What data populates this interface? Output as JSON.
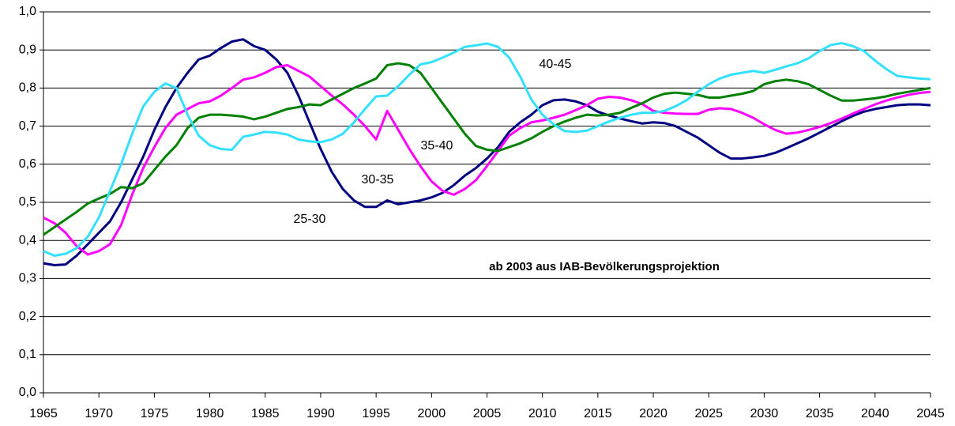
{
  "chart_data": {
    "type": "line",
    "x": [
      1965,
      1966,
      1967,
      1968,
      1969,
      1970,
      1971,
      1972,
      1973,
      1974,
      1975,
      1976,
      1977,
      1978,
      1979,
      1980,
      1981,
      1982,
      1983,
      1984,
      1985,
      1986,
      1987,
      1988,
      1989,
      1990,
      1991,
      1992,
      1993,
      1994,
      1995,
      1996,
      1997,
      1998,
      1999,
      2000,
      2001,
      2002,
      2003,
      2004,
      2005,
      2006,
      2007,
      2008,
      2009,
      2010,
      2011,
      2012,
      2013,
      2014,
      2015,
      2016,
      2017,
      2018,
      2019,
      2020,
      2021,
      2022,
      2023,
      2024,
      2025,
      2026,
      2027,
      2028,
      2029,
      2030,
      2031,
      2032,
      2033,
      2034,
      2035,
      2036,
      2037,
      2038,
      2039,
      2040,
      2041,
      2042,
      2043,
      2044,
      2045
    ],
    "series": [
      {
        "name": "25-30",
        "color": "#000080",
        "values": [
          0.34,
          0.335,
          0.337,
          0.36,
          0.39,
          0.42,
          0.45,
          0.5,
          0.56,
          0.62,
          0.69,
          0.75,
          0.8,
          0.84,
          0.875,
          0.885,
          0.905,
          0.922,
          0.928,
          0.91,
          0.9,
          0.875,
          0.84,
          0.78,
          0.71,
          0.64,
          0.58,
          0.535,
          0.505,
          0.488,
          0.488,
          0.505,
          0.495,
          0.5,
          0.505,
          0.513,
          0.525,
          0.545,
          0.57,
          0.59,
          0.615,
          0.645,
          0.685,
          0.71,
          0.73,
          0.755,
          0.768,
          0.77,
          0.765,
          0.755,
          0.738,
          0.728,
          0.72,
          0.713,
          0.707,
          0.71,
          0.708,
          0.7,
          0.685,
          0.67,
          0.65,
          0.63,
          0.615,
          0.615,
          0.618,
          0.622,
          0.63,
          0.642,
          0.655,
          0.668,
          0.683,
          0.698,
          0.713,
          0.727,
          0.738,
          0.745,
          0.75,
          0.755,
          0.757,
          0.757,
          0.755
        ]
      },
      {
        "name": "30-35",
        "color": "#ff00ff",
        "values": [
          0.46,
          0.445,
          0.42,
          0.385,
          0.363,
          0.372,
          0.39,
          0.44,
          0.52,
          0.59,
          0.645,
          0.695,
          0.73,
          0.745,
          0.76,
          0.765,
          0.78,
          0.8,
          0.822,
          0.828,
          0.84,
          0.855,
          0.86,
          0.845,
          0.83,
          0.805,
          0.78,
          0.757,
          0.73,
          0.7,
          0.665,
          0.74,
          0.69,
          0.64,
          0.595,
          0.555,
          0.53,
          0.52,
          0.535,
          0.558,
          0.595,
          0.635,
          0.675,
          0.695,
          0.71,
          0.715,
          0.722,
          0.73,
          0.742,
          0.755,
          0.772,
          0.777,
          0.775,
          0.768,
          0.758,
          0.74,
          0.735,
          0.733,
          0.732,
          0.732,
          0.743,
          0.747,
          0.745,
          0.735,
          0.722,
          0.705,
          0.69,
          0.68,
          0.683,
          0.69,
          0.698,
          0.708,
          0.72,
          0.733,
          0.745,
          0.757,
          0.767,
          0.775,
          0.782,
          0.787,
          0.79
        ]
      },
      {
        "name": "35-40",
        "color": "#008000",
        "values": [
          0.415,
          0.435,
          0.455,
          0.475,
          0.497,
          0.51,
          0.522,
          0.54,
          0.537,
          0.55,
          0.585,
          0.62,
          0.65,
          0.695,
          0.722,
          0.73,
          0.73,
          0.728,
          0.725,
          0.718,
          0.725,
          0.735,
          0.745,
          0.75,
          0.757,
          0.755,
          0.77,
          0.785,
          0.8,
          0.812,
          0.825,
          0.86,
          0.865,
          0.86,
          0.84,
          0.8,
          0.76,
          0.72,
          0.68,
          0.648,
          0.638,
          0.635,
          0.645,
          0.655,
          0.668,
          0.685,
          0.7,
          0.712,
          0.722,
          0.73,
          0.728,
          0.73,
          0.735,
          0.748,
          0.76,
          0.775,
          0.785,
          0.788,
          0.785,
          0.782,
          0.775,
          0.775,
          0.78,
          0.785,
          0.792,
          0.81,
          0.818,
          0.822,
          0.818,
          0.81,
          0.795,
          0.78,
          0.767,
          0.767,
          0.77,
          0.773,
          0.778,
          0.785,
          0.79,
          0.795,
          0.8
        ]
      },
      {
        "name": "40-45",
        "color": "#33e0ff",
        "values": [
          0.372,
          0.36,
          0.365,
          0.38,
          0.41,
          0.46,
          0.53,
          0.6,
          0.68,
          0.752,
          0.79,
          0.812,
          0.8,
          0.73,
          0.675,
          0.65,
          0.64,
          0.638,
          0.672,
          0.678,
          0.685,
          0.683,
          0.678,
          0.665,
          0.66,
          0.658,
          0.665,
          0.68,
          0.71,
          0.745,
          0.778,
          0.78,
          0.805,
          0.835,
          0.862,
          0.868,
          0.88,
          0.893,
          0.908,
          0.912,
          0.917,
          0.908,
          0.88,
          0.83,
          0.77,
          0.73,
          0.705,
          0.687,
          0.685,
          0.688,
          0.7,
          0.712,
          0.722,
          0.73,
          0.735,
          0.735,
          0.74,
          0.752,
          0.768,
          0.79,
          0.81,
          0.825,
          0.835,
          0.84,
          0.845,
          0.84,
          0.848,
          0.857,
          0.865,
          0.878,
          0.897,
          0.913,
          0.918,
          0.91,
          0.897,
          0.872,
          0.85,
          0.832,
          0.828,
          0.825,
          0.823
        ]
      }
    ],
    "annotation": "ab 2003 aus IAB-Bevölkerungsprojektion",
    "xlim": [
      1965,
      2045
    ],
    "xticks": [
      1965,
      1970,
      1975,
      1980,
      1985,
      1990,
      1995,
      2000,
      2005,
      2010,
      2015,
      2020,
      2025,
      2030,
      2035,
      2040,
      2045
    ],
    "ylim": [
      0,
      1
    ],
    "yticks": [
      {
        "value": 0,
        "label": "0,0"
      },
      {
        "value": 0.1,
        "label": "0,1"
      },
      {
        "value": 0.2,
        "label": "0,2"
      },
      {
        "value": 0.3,
        "label": "0,3"
      },
      {
        "value": 0.4,
        "label": "0,4"
      },
      {
        "value": 0.5,
        "label": "0,5"
      },
      {
        "value": 0.6,
        "label": "0,6"
      },
      {
        "value": 0.7,
        "label": "0,7"
      },
      {
        "value": 0.8,
        "label": "0,8"
      },
      {
        "value": 0.9,
        "label": "0,9"
      },
      {
        "value": 1,
        "label": "1,0"
      }
    ],
    "grid": true
  }
}
